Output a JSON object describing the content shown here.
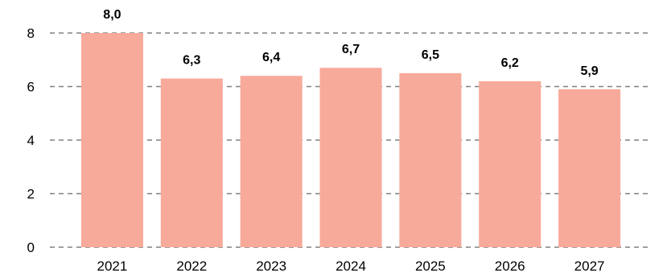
{
  "chart_data": {
    "type": "bar",
    "title": "",
    "xlabel": "",
    "ylabel": "",
    "categories": [
      "2021",
      "2022",
      "2023",
      "2024",
      "2025",
      "2026",
      "2027"
    ],
    "values": [
      8.0,
      6.3,
      6.4,
      6.7,
      6.5,
      6.2,
      5.9
    ],
    "data_labels": [
      "8,0",
      "6,3",
      "6,4",
      "6,7",
      "6,5",
      "6,2",
      "5,9"
    ],
    "y_ticks": [
      0,
      2,
      4,
      6,
      8
    ],
    "y_tick_labels": [
      "0",
      "2",
      "4",
      "6",
      "8"
    ],
    "ylim": [
      0,
      8
    ],
    "grid": true,
    "grid_style": "dashed",
    "legend": "none",
    "colors": {
      "bar": "#F8AA9A",
      "grid": "#808080",
      "text": "#000000"
    }
  }
}
